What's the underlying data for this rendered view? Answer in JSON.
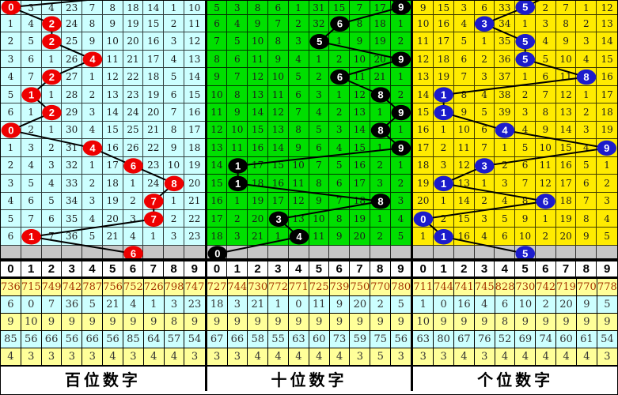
{
  "colors": {
    "hundreds_bg": "#CCFFFF",
    "tens_bg": "#00DF00",
    "units_bg": "#FFEB00",
    "gray_row_bg": "#C6C6C6",
    "red_circle": "#EE0000",
    "black_circle": "#000000",
    "blue_circle": "#1C1CCC",
    "trend_line": "#000000",
    "stat_row_bgs": [
      "#FFFF99",
      "#CCFFFF",
      "#FFFF99",
      "#CCFFFF",
      "#FFFF99"
    ],
    "stat_row_text": [
      "#A63400",
      "#333333",
      "#333333",
      "#333333",
      "#333333"
    ]
  },
  "column_header": [
    "0",
    "1",
    "2",
    "3",
    "4",
    "5",
    "6",
    "7",
    "8",
    "9"
  ],
  "panels": [
    {
      "id": "hundreds",
      "footer_label": "百位数字",
      "bg": "#CCFFFF",
      "circle_color": "#EE0000",
      "rows": [
        [
          "0",
          "3",
          "4",
          "23",
          "7",
          "8",
          "18",
          "14",
          "1",
          "10"
        ],
        [
          "1",
          "4",
          "2",
          "24",
          "8",
          "9",
          "19",
          "15",
          "2",
          "11"
        ],
        [
          "2",
          "5",
          "2",
          "25",
          "9",
          "10",
          "20",
          "16",
          "3",
          "12"
        ],
        [
          "3",
          "6",
          "1",
          "26",
          "4",
          "11",
          "21",
          "17",
          "4",
          "13"
        ],
        [
          "4",
          "7",
          "2",
          "27",
          "1",
          "12",
          "22",
          "18",
          "5",
          "14"
        ],
        [
          "5",
          "1",
          "1",
          "28",
          "2",
          "13",
          "23",
          "19",
          "6",
          "15"
        ],
        [
          "6",
          "1",
          "2",
          "29",
          "3",
          "14",
          "24",
          "20",
          "7",
          "16"
        ],
        [
          "0",
          "2",
          "1",
          "30",
          "4",
          "15",
          "25",
          "21",
          "8",
          "17"
        ],
        [
          "1",
          "3",
          "2",
          "31",
          "4",
          "16",
          "26",
          "22",
          "9",
          "18"
        ],
        [
          "2",
          "4",
          "3",
          "32",
          "1",
          "17",
          "6",
          "23",
          "10",
          "19"
        ],
        [
          "3",
          "5",
          "4",
          "33",
          "2",
          "18",
          "1",
          "24",
          "8",
          "20"
        ],
        [
          "4",
          "6",
          "5",
          "34",
          "3",
          "19",
          "2",
          "7",
          "1",
          "21"
        ],
        [
          "5",
          "7",
          "6",
          "35",
          "4",
          "20",
          "3",
          "7",
          "2",
          "22"
        ],
        [
          "6",
          "1",
          "7",
          "36",
          "5",
          "21",
          "4",
          "1",
          "3",
          "23"
        ],
        [
          "",
          "",
          "",
          "",
          "",
          "",
          "",
          "",
          "",
          ""
        ]
      ],
      "drawn_cols": [
        0,
        2,
        2,
        4,
        2,
        1,
        2,
        0,
        4,
        6,
        8,
        7,
        7,
        1,
        6
      ],
      "stats": [
        [
          "736",
          "715",
          "749",
          "742",
          "787",
          "756",
          "752",
          "726",
          "798",
          "747"
        ],
        [
          "6",
          "0",
          "7",
          "36",
          "5",
          "21",
          "4",
          "1",
          "3",
          "23"
        ],
        [
          "9",
          "10",
          "9",
          "9",
          "9",
          "9",
          "9",
          "9",
          "8",
          "9"
        ],
        [
          "85",
          "56",
          "66",
          "56",
          "66",
          "56",
          "85",
          "64",
          "57",
          "54"
        ],
        [
          "4",
          "3",
          "3",
          "3",
          "3",
          "4",
          "3",
          "4",
          "4",
          "3"
        ]
      ]
    },
    {
      "id": "tens",
      "footer_label": "十位数字",
      "bg": "#00DF00",
      "circle_color": "#000000",
      "rows": [
        [
          "5",
          "3",
          "8",
          "6",
          "1",
          "31",
          "15",
          "7",
          "17",
          "9"
        ],
        [
          "6",
          "4",
          "9",
          "7",
          "2",
          "32",
          "6",
          "8",
          "18",
          "1"
        ],
        [
          "7",
          "5",
          "10",
          "8",
          "3",
          "5",
          "1",
          "9",
          "19",
          "2"
        ],
        [
          "8",
          "6",
          "11",
          "9",
          "4",
          "1",
          "2",
          "10",
          "20",
          "9"
        ],
        [
          "9",
          "7",
          "12",
          "10",
          "5",
          "2",
          "6",
          "11",
          "21",
          "1"
        ],
        [
          "10",
          "8",
          "13",
          "11",
          "6",
          "3",
          "1",
          "12",
          "8",
          "2"
        ],
        [
          "11",
          "9",
          "14",
          "12",
          "7",
          "4",
          "2",
          "13",
          "1",
          "9"
        ],
        [
          "12",
          "10",
          "15",
          "13",
          "8",
          "5",
          "3",
          "14",
          "8",
          "1"
        ],
        [
          "13",
          "11",
          "16",
          "14",
          "9",
          "6",
          "4",
          "15",
          "1",
          "9"
        ],
        [
          "14",
          "1",
          "17",
          "15",
          "10",
          "7",
          "5",
          "16",
          "2",
          "1"
        ],
        [
          "15",
          "1",
          "18",
          "16",
          "11",
          "8",
          "6",
          "17",
          "3",
          "2"
        ],
        [
          "16",
          "1",
          "19",
          "17",
          "12",
          "9",
          "7",
          "18",
          "8",
          "3"
        ],
        [
          "17",
          "2",
          "20",
          "3",
          "13",
          "10",
          "8",
          "19",
          "1",
          "4"
        ],
        [
          "18",
          "3",
          "21",
          "1",
          "4",
          "11",
          "9",
          "20",
          "2",
          "5"
        ],
        [
          "",
          "",
          "",
          "",
          "",
          "",
          "",
          "",
          "",
          ""
        ]
      ],
      "drawn_cols": [
        9,
        6,
        5,
        9,
        6,
        8,
        9,
        8,
        9,
        1,
        1,
        8,
        3,
        4,
        0
      ],
      "stats": [
        [
          "727",
          "744",
          "730",
          "772",
          "771",
          "725",
          "739",
          "750",
          "770",
          "780"
        ],
        [
          "18",
          "3",
          "21",
          "1",
          "0",
          "11",
          "9",
          "20",
          "2",
          "5"
        ],
        [
          "9",
          "9",
          "9",
          "9",
          "9",
          "9",
          "9",
          "9",
          "9",
          "9"
        ],
        [
          "67",
          "66",
          "58",
          "55",
          "63",
          "60",
          "73",
          "59",
          "75",
          "56"
        ],
        [
          "3",
          "3",
          "4",
          "4",
          "4",
          "4",
          "4",
          "3",
          "5",
          "3"
        ]
      ]
    },
    {
      "id": "units",
      "footer_label": "个位数字",
      "bg": "#FFEB00",
      "circle_color": "#1C1CCC",
      "rows": [
        [
          "9",
          "15",
          "3",
          "6",
          "33",
          "5",
          "2",
          "7",
          "1",
          "12"
        ],
        [
          "10",
          "16",
          "4",
          "3",
          "34",
          "1",
          "3",
          "8",
          "2",
          "13"
        ],
        [
          "11",
          "17",
          "5",
          "1",
          "35",
          "5",
          "4",
          "9",
          "3",
          "14"
        ],
        [
          "12",
          "18",
          "6",
          "2",
          "36",
          "5",
          "5",
          "10",
          "4",
          "15"
        ],
        [
          "13",
          "19",
          "7",
          "3",
          "37",
          "1",
          "6",
          "11",
          "8",
          "16"
        ],
        [
          "14",
          "1",
          "8",
          "4",
          "38",
          "2",
          "7",
          "12",
          "1",
          "17"
        ],
        [
          "15",
          "1",
          "9",
          "5",
          "39",
          "3",
          "8",
          "13",
          "2",
          "18"
        ],
        [
          "16",
          "1",
          "10",
          "6",
          "4",
          "4",
          "9",
          "14",
          "3",
          "19"
        ],
        [
          "17",
          "2",
          "11",
          "7",
          "1",
          "5",
          "10",
          "15",
          "4",
          "9"
        ],
        [
          "18",
          "3",
          "12",
          "3",
          "2",
          "6",
          "11",
          "16",
          "5",
          "1"
        ],
        [
          "19",
          "1",
          "13",
          "1",
          "3",
          "7",
          "12",
          "17",
          "6",
          "2"
        ],
        [
          "20",
          "1",
          "14",
          "2",
          "4",
          "8",
          "6",
          "18",
          "7",
          "3"
        ],
        [
          "0",
          "2",
          "15",
          "3",
          "5",
          "9",
          "1",
          "19",
          "8",
          "4"
        ],
        [
          "1",
          "1",
          "16",
          "4",
          "6",
          "10",
          "2",
          "20",
          "9",
          "5"
        ],
        [
          "",
          "",
          "",
          "",
          "",
          "",
          "",
          "",
          "",
          ""
        ]
      ],
      "drawn_cols": [
        5,
        3,
        5,
        5,
        8,
        1,
        1,
        4,
        9,
        3,
        1,
        6,
        0,
        1,
        5
      ],
      "stats": [
        [
          "711",
          "744",
          "741",
          "745",
          "828",
          "730",
          "742",
          "719",
          "770",
          "778"
        ],
        [
          "1",
          "0",
          "16",
          "4",
          "6",
          "10",
          "2",
          "20",
          "9",
          "5"
        ],
        [
          "10",
          "9",
          "9",
          "9",
          "8",
          "9",
          "9",
          "9",
          "9",
          "9"
        ],
        [
          "63",
          "80",
          "67",
          "76",
          "52",
          "69",
          "74",
          "60",
          "61",
          "54"
        ],
        [
          "3",
          "3",
          "4",
          "3",
          "4",
          "4",
          "4",
          "4",
          "4",
          "3"
        ]
      ]
    }
  ],
  "chart_data": {
    "type": "table",
    "description": "Digit trend chart: columns 0-9 per panel; circled cells mark drawn digit per row; last gray row is the pending draw",
    "categories": [
      "百位数字",
      "十位数字",
      "个位数字"
    ],
    "series": [
      {
        "name": "百位数字",
        "values": [
          0,
          2,
          2,
          4,
          2,
          1,
          2,
          0,
          4,
          6,
          8,
          7,
          7,
          1
        ],
        "pending": 6
      },
      {
        "name": "十位数字",
        "values": [
          9,
          6,
          5,
          9,
          6,
          8,
          9,
          8,
          9,
          1,
          1,
          8,
          3,
          4
        ],
        "pending": 0
      },
      {
        "name": "个位数字",
        "values": [
          5,
          3,
          5,
          5,
          8,
          1,
          1,
          4,
          9,
          3,
          1,
          6,
          0,
          1
        ],
        "pending": 5
      }
    ]
  }
}
